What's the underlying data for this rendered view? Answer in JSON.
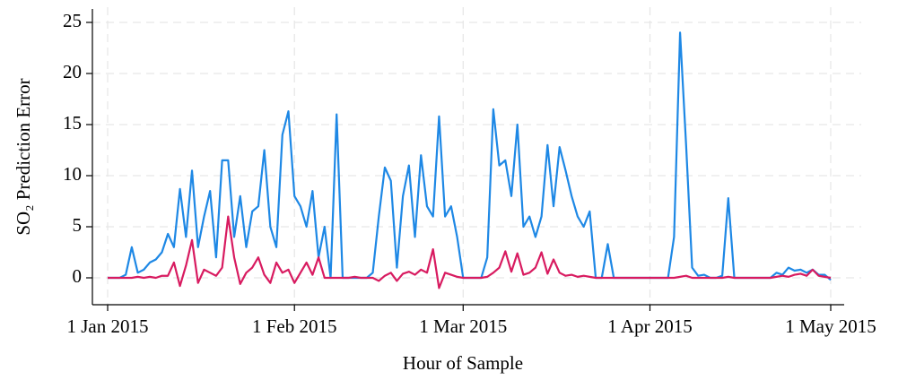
{
  "chart_data": {
    "type": "line",
    "x_label": "Hour of Sample",
    "y_label": "SO₂ Prediction Error",
    "x": [
      "2015-01-01",
      "2015-01-02",
      "2015-01-03",
      "2015-01-04",
      "2015-01-05",
      "2015-01-06",
      "2015-01-07",
      "2015-01-08",
      "2015-01-09",
      "2015-01-10",
      "2015-01-11",
      "2015-01-12",
      "2015-01-13",
      "2015-01-14",
      "2015-01-15",
      "2015-01-16",
      "2015-01-17",
      "2015-01-18",
      "2015-01-19",
      "2015-01-20",
      "2015-01-21",
      "2015-01-22",
      "2015-01-23",
      "2015-01-24",
      "2015-01-25",
      "2015-01-26",
      "2015-01-27",
      "2015-01-28",
      "2015-01-29",
      "2015-01-30",
      "2015-01-31",
      "2015-02-01",
      "2015-02-02",
      "2015-02-03",
      "2015-02-04",
      "2015-02-05",
      "2015-02-06",
      "2015-02-07",
      "2015-02-08",
      "2015-02-09",
      "2015-02-10",
      "2015-02-11",
      "2015-02-12",
      "2015-02-13",
      "2015-02-14",
      "2015-02-15",
      "2015-02-16",
      "2015-02-17",
      "2015-02-18",
      "2015-02-19",
      "2015-02-20",
      "2015-02-21",
      "2015-02-22",
      "2015-02-23",
      "2015-02-24",
      "2015-02-25",
      "2015-02-26",
      "2015-02-27",
      "2015-02-28",
      "2015-03-01",
      "2015-03-02",
      "2015-03-03",
      "2015-03-04",
      "2015-03-05",
      "2015-03-06",
      "2015-03-07",
      "2015-03-08",
      "2015-03-09",
      "2015-03-10",
      "2015-03-11",
      "2015-03-12",
      "2015-03-13",
      "2015-03-14",
      "2015-03-15",
      "2015-03-16",
      "2015-03-17",
      "2015-03-18",
      "2015-03-19",
      "2015-03-20",
      "2015-03-21",
      "2015-03-22",
      "2015-03-23",
      "2015-03-24",
      "2015-03-25",
      "2015-03-26",
      "2015-03-27",
      "2015-03-28",
      "2015-03-29",
      "2015-03-30",
      "2015-03-31",
      "2015-04-01",
      "2015-04-02",
      "2015-04-03",
      "2015-04-04",
      "2015-04-05",
      "2015-04-06",
      "2015-04-07",
      "2015-04-08",
      "2015-04-09",
      "2015-04-10",
      "2015-04-11",
      "2015-04-12",
      "2015-04-13",
      "2015-04-14",
      "2015-04-15",
      "2015-04-16",
      "2015-04-17",
      "2015-04-18",
      "2015-04-19",
      "2015-04-20",
      "2015-04-21",
      "2015-04-22",
      "2015-04-23",
      "2015-04-24",
      "2015-04-25",
      "2015-04-26",
      "2015-04-27",
      "2015-04-28",
      "2015-04-29",
      "2015-04-30",
      "2015-05-01"
    ],
    "series": [
      {
        "color": "#1e88e5",
        "values": [
          0,
          0,
          0,
          0.3,
          3,
          0.5,
          0.8,
          1.5,
          1.8,
          2.5,
          4.3,
          3,
          8.7,
          4,
          10.5,
          3,
          6,
          8.5,
          2,
          11.5,
          11.5,
          4,
          8,
          3,
          6.5,
          7,
          12.5,
          5,
          3,
          14,
          16.3,
          8,
          7,
          5,
          8.5,
          2,
          5,
          0,
          16,
          0,
          0,
          0,
          0,
          0,
          0.5,
          6,
          10.8,
          9.5,
          1,
          8,
          11,
          4,
          12,
          7,
          6,
          15.8,
          6,
          7,
          4,
          0,
          0,
          0,
          0,
          2,
          16.5,
          11,
          11.5,
          8,
          15,
          5,
          6,
          4,
          6,
          13,
          7,
          12.8,
          10.5,
          8,
          6,
          5,
          6.5,
          0,
          0,
          3.3,
          0,
          0,
          0,
          0,
          0,
          0,
          0,
          0,
          0,
          0,
          4,
          24,
          13,
          1,
          0.2,
          0.3,
          0,
          0,
          0.2,
          7.8,
          0,
          0,
          0,
          0,
          0,
          0,
          0,
          0.5,
          0.3,
          1,
          0.7,
          0.8,
          0.5,
          0.8,
          0.3,
          0.3,
          -0.2
        ]
      },
      {
        "color": "#d81b60",
        "values": [
          0,
          0,
          0,
          0,
          0,
          0.1,
          0,
          0.1,
          0,
          0.2,
          0.2,
          1.5,
          -0.8,
          1.2,
          3.7,
          -0.5,
          0.8,
          0.5,
          0.2,
          1,
          6,
          2,
          -0.6,
          0.5,
          1,
          2,
          0.3,
          -0.5,
          1.5,
          0.5,
          0.8,
          -0.5,
          0.5,
          1.5,
          0.3,
          2,
          0,
          0,
          0,
          0,
          0,
          0.1,
          0,
          0,
          0,
          -0.3,
          0.2,
          0.5,
          -0.3,
          0.4,
          0.6,
          0.3,
          0.8,
          0.5,
          2.8,
          -1,
          0.5,
          0.3,
          0.1,
          0,
          0,
          0,
          0,
          0.1,
          0.5,
          1,
          2.6,
          0.6,
          2.4,
          0.3,
          0.5,
          1,
          2.5,
          0.4,
          1.8,
          0.5,
          0.2,
          0.3,
          0.1,
          0.2,
          0.1,
          0,
          0,
          0,
          0,
          0,
          0,
          0,
          0,
          0,
          0,
          0,
          0,
          0,
          0,
          0.1,
          0.2,
          0,
          0,
          0,
          0,
          0,
          0,
          0.1,
          0,
          0,
          0,
          0,
          0,
          0,
          0,
          0.1,
          0.2,
          0.1,
          0.3,
          0.4,
          0.2,
          0.8,
          0.2,
          0.1,
          0
        ]
      }
    ],
    "xlim": [
      "2015-01-01",
      "2015-05-01"
    ],
    "xticks": [
      {
        "value": "2015-01-01",
        "label": "1 Jan 2015"
      },
      {
        "value": "2015-02-01",
        "label": "1 Feb 2015"
      },
      {
        "value": "2015-03-01",
        "label": "1 Mar 2015"
      },
      {
        "value": "2015-04-01",
        "label": "1 Apr 2015"
      },
      {
        "value": "2015-05-01",
        "label": "1 May 2015"
      }
    ],
    "ylim": [
      -2.5,
      26
    ],
    "yticks": [
      0,
      5,
      10,
      15,
      20,
      25
    ],
    "grid": true
  }
}
